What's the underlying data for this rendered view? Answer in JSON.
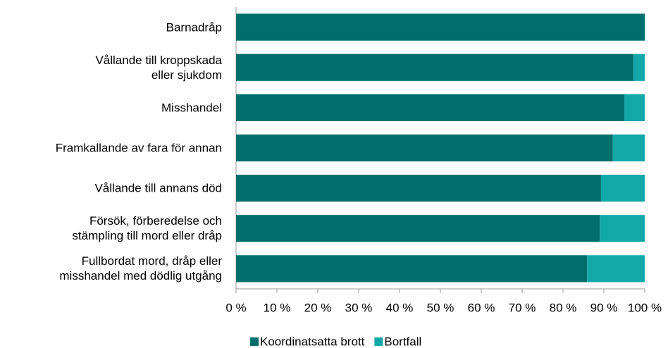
{
  "chart_data": {
    "type": "stacked-barh",
    "categories": [
      "Barnadråp",
      "Vållande till kroppskada\neller sjukdom",
      "Misshandel",
      "Framkallande av fara för annan",
      "Vållande till annans död",
      "Försök, förberedelse och\nstämpling till mord eller dråp",
      "Fullbordat mord, dråp eller\nmisshandel med dödlig utgång"
    ],
    "series": [
      {
        "name": "Koordinatsatta brott",
        "color": "#006f6b",
        "values": [
          100,
          97.2,
          95,
          92.2,
          89.3,
          89,
          85.9
        ]
      },
      {
        "name": "Bortfall",
        "color": "#13a8a8",
        "values": [
          0,
          2.8,
          5,
          7.8,
          10.7,
          11,
          14.1
        ]
      }
    ],
    "xlim": [
      0,
      100
    ],
    "xticks": [
      {
        "value": 0,
        "label": "0 %"
      },
      {
        "value": 10,
        "label": "10 %"
      },
      {
        "value": 20,
        "label": "20 %"
      },
      {
        "value": 30,
        "label": "30 %"
      },
      {
        "value": 40,
        "label": "40 %"
      },
      {
        "value": 50,
        "label": "50 %"
      },
      {
        "value": 60,
        "label": "60 %"
      },
      {
        "value": 70,
        "label": "70 %"
      },
      {
        "value": 80,
        "label": "80 %"
      },
      {
        "value": 90,
        "label": "90 %"
      },
      {
        "value": 100,
        "label": "100 %"
      }
    ],
    "legend": "bottom"
  }
}
